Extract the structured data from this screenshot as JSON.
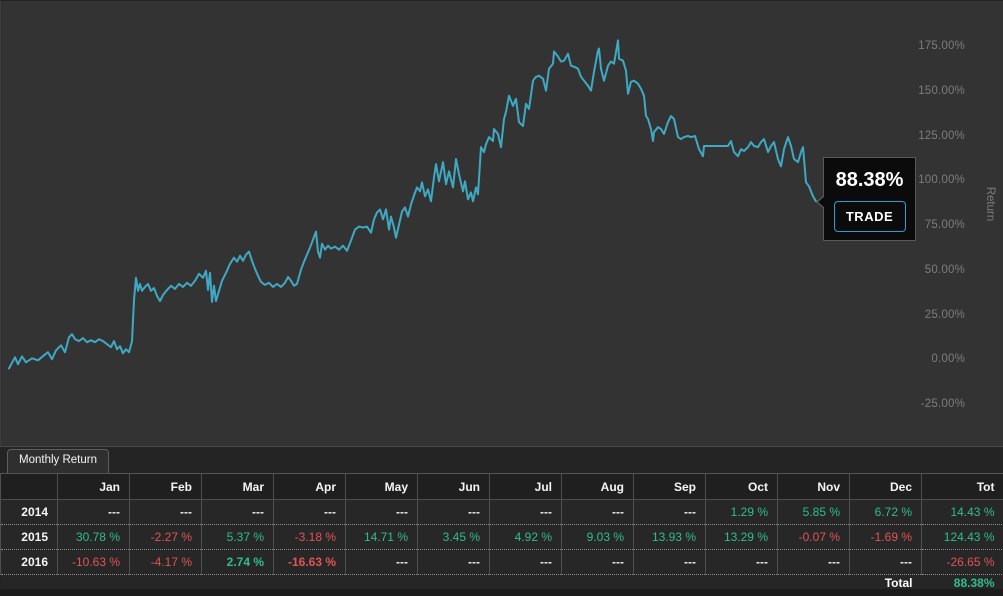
{
  "colors": {
    "positive": "#2EBE8D",
    "negative": "#E05454",
    "line": "#3FA9C4",
    "accent": "#2A9FD6"
  },
  "chart": {
    "tooltip": {
      "value": "88.38%",
      "button_label": "TRADE"
    },
    "axis": {
      "title": "Return",
      "ticks": [
        {
          "value": 175,
          "label": "175.00%"
        },
        {
          "value": 150,
          "label": "150.00%"
        },
        {
          "value": 125,
          "label": "125.00%"
        },
        {
          "value": 100,
          "label": "100.00%"
        },
        {
          "value": 75,
          "label": "75.00%"
        },
        {
          "value": 50,
          "label": "50.00%"
        },
        {
          "value": 25,
          "label": "25.00%"
        },
        {
          "value": 0,
          "label": "0.00%"
        },
        {
          "value": -25,
          "label": "-25.00%"
        }
      ]
    }
  },
  "chart_data": {
    "type": "line",
    "title": "",
    "xlabel": "",
    "ylabel": "Return",
    "ylim": [
      -25,
      175
    ],
    "grid": false,
    "legend": false,
    "x_description": "time (Oct 2014 - Apr 2016), no x tick labels shown; x stored as plot pixel offset",
    "point_format": "[x_px, return_pct]",
    "series": [
      {
        "name": "Return",
        "final_value_pct": 88.38,
        "points": [
          [
            8,
            -4.5
          ],
          [
            14,
            1.7
          ],
          [
            17,
            -2.2
          ],
          [
            21,
            2.2
          ],
          [
            25,
            -1.1
          ],
          [
            31,
            1.1
          ],
          [
            37,
            0
          ],
          [
            43,
            2.8
          ],
          [
            47,
            4.5
          ],
          [
            51,
            0.6
          ],
          [
            55,
            5.6
          ],
          [
            60,
            8.4
          ],
          [
            64,
            4.5
          ],
          [
            68,
            12.9
          ],
          [
            71,
            14.6
          ],
          [
            74,
            11.8
          ],
          [
            78,
            10.7
          ],
          [
            82,
            12.4
          ],
          [
            86,
            10.1
          ],
          [
            90,
            11.2
          ],
          [
            94,
            10.1
          ],
          [
            98,
            11.8
          ],
          [
            102,
            10.7
          ],
          [
            106,
            9
          ],
          [
            110,
            7.3
          ],
          [
            113,
            10.7
          ],
          [
            116,
            6.2
          ],
          [
            119,
            7.9
          ],
          [
            122,
            3.9
          ],
          [
            125,
            6.2
          ],
          [
            128,
            4.5
          ],
          [
            131,
            10.7
          ],
          [
            133,
            33.7
          ],
          [
            135,
            46.1
          ],
          [
            137,
            38.8
          ],
          [
            139,
            42.7
          ],
          [
            141,
            38.8
          ],
          [
            144,
            41
          ],
          [
            147,
            42.7
          ],
          [
            150,
            38.8
          ],
          [
            153,
            40.4
          ],
          [
            156,
            36
          ],
          [
            159,
            33.1
          ],
          [
            162,
            36.5
          ],
          [
            166,
            39.3
          ],
          [
            170,
            41.6
          ],
          [
            174,
            39.9
          ],
          [
            178,
            42.7
          ],
          [
            182,
            41
          ],
          [
            186,
            43.3
          ],
          [
            190,
            41.6
          ],
          [
            194,
            44.4
          ],
          [
            198,
            48.3
          ],
          [
            202,
            46.1
          ],
          [
            205,
            50
          ],
          [
            207,
            39.3
          ],
          [
            209,
            48.9
          ],
          [
            211,
            32.6
          ],
          [
            213,
            41.6
          ],
          [
            215,
            33.1
          ],
          [
            218,
            38.8
          ],
          [
            221,
            44.4
          ],
          [
            225,
            48.9
          ],
          [
            229,
            53.9
          ],
          [
            233,
            57.3
          ],
          [
            236,
            55.1
          ],
          [
            239,
            58.4
          ],
          [
            242,
            55.6
          ],
          [
            245,
            59
          ],
          [
            248,
            60.7
          ],
          [
            251,
            55.6
          ],
          [
            254,
            51.1
          ],
          [
            257,
            47.2
          ],
          [
            260,
            43.8
          ],
          [
            264,
            42.1
          ],
          [
            268,
            43.3
          ],
          [
            272,
            41
          ],
          [
            276,
            42.7
          ],
          [
            280,
            41
          ],
          [
            284,
            43.3
          ],
          [
            287,
            46.6
          ],
          [
            290,
            44.4
          ],
          [
            293,
            41.6
          ],
          [
            296,
            42.7
          ],
          [
            300,
            50.6
          ],
          [
            303,
            55.1
          ],
          [
            306,
            59
          ],
          [
            309,
            62.9
          ],
          [
            312,
            67.4
          ],
          [
            315,
            71.9
          ],
          [
            317,
            60.7
          ],
          [
            319,
            57.3
          ],
          [
            321,
            65.2
          ],
          [
            324,
            61.8
          ],
          [
            327,
            64
          ],
          [
            330,
            62.4
          ],
          [
            334,
            63.5
          ],
          [
            338,
            61.8
          ],
          [
            342,
            64
          ],
          [
            346,
            61.2
          ],
          [
            350,
            66.9
          ],
          [
            354,
            73
          ],
          [
            358,
            74.7
          ],
          [
            362,
            74.2
          ],
          [
            366,
            74.7
          ],
          [
            370,
            71.3
          ],
          [
            373,
            78.7
          ],
          [
            376,
            82.6
          ],
          [
            379,
            84.3
          ],
          [
            382,
            78.7
          ],
          [
            385,
            84.3
          ],
          [
            388,
            73
          ],
          [
            390,
            80.3
          ],
          [
            393,
            74.2
          ],
          [
            395,
            68.5
          ],
          [
            398,
            75.8
          ],
          [
            401,
            83.1
          ],
          [
            404,
            85.4
          ],
          [
            407,
            80.3
          ],
          [
            410,
            87.1
          ],
          [
            413,
            92.1
          ],
          [
            416,
            96.6
          ],
          [
            419,
            94.4
          ],
          [
            421,
            99.4
          ],
          [
            424,
            91.6
          ],
          [
            427,
            95.5
          ],
          [
            430,
            88.8
          ],
          [
            433,
            102.2
          ],
          [
            435,
            109.6
          ],
          [
            438,
            100
          ],
          [
            442,
            110.7
          ],
          [
            445,
            98.3
          ],
          [
            448,
            105.6
          ],
          [
            452,
            96.6
          ],
          [
            455,
            112.4
          ],
          [
            458,
            103.9
          ],
          [
            462,
            94.4
          ],
          [
            464,
            100
          ],
          [
            467,
            89.9
          ],
          [
            470,
            93.8
          ],
          [
            472,
            88.8
          ],
          [
            475,
            96.6
          ],
          [
            477,
            92.7
          ],
          [
            480,
            119.1
          ],
          [
            483,
            116.3
          ],
          [
            485,
            120.8
          ],
          [
            488,
            124.7
          ],
          [
            492,
            122.5
          ],
          [
            493,
            129.2
          ],
          [
            497,
            126.4
          ],
          [
            500,
            119.1
          ],
          [
            503,
            134.8
          ],
          [
            505,
            138.8
          ],
          [
            508,
            147.8
          ],
          [
            512,
            142.1
          ],
          [
            515,
            146.1
          ],
          [
            518,
            133.1
          ],
          [
            522,
            130.9
          ],
          [
            525,
            143.3
          ],
          [
            528,
            140.4
          ],
          [
            532,
            156.2
          ],
          [
            535,
            158.4
          ],
          [
            538,
            159
          ],
          [
            542,
            157.3
          ],
          [
            545,
            150.6
          ],
          [
            548,
            162.9
          ],
          [
            552,
            165.7
          ],
          [
            553,
            172.5
          ],
          [
            557,
            169.7
          ],
          [
            560,
            166.9
          ],
          [
            563,
            167.4
          ],
          [
            567,
            171.3
          ],
          [
            570,
            164.6
          ],
          [
            573,
            164
          ],
          [
            577,
            162.9
          ],
          [
            580,
            158.4
          ],
          [
            583,
            156.2
          ],
          [
            587,
            153.4
          ],
          [
            590,
            150.6
          ],
          [
            593,
            161.2
          ],
          [
            597,
            173
          ],
          [
            598,
            174.2
          ],
          [
            600,
            162.9
          ],
          [
            603,
            156.2
          ],
          [
            607,
            164.6
          ],
          [
            610,
            166.9
          ],
          [
            613,
            165.7
          ],
          [
            617,
            178.7
          ],
          [
            618,
            168.5
          ],
          [
            622,
            167.4
          ],
          [
            625,
            161.8
          ],
          [
            627,
            148.9
          ],
          [
            630,
            155.6
          ],
          [
            633,
            156.2
          ],
          [
            637,
            154.5
          ],
          [
            640,
            151.7
          ],
          [
            643,
            147.8
          ],
          [
            645,
            136.5
          ],
          [
            647,
            134.8
          ],
          [
            650,
            129.2
          ],
          [
            652,
            122.5
          ],
          [
            653,
            127.5
          ],
          [
            657,
            130.3
          ],
          [
            660,
            129.2
          ],
          [
            663,
            126.4
          ],
          [
            667,
            133.1
          ],
          [
            670,
            136.5
          ],
          [
            673,
            134.8
          ],
          [
            677,
            124.7
          ],
          [
            680,
            123.6
          ],
          [
            683,
            124.7
          ],
          [
            687,
            125.3
          ],
          [
            690,
            124.7
          ],
          [
            694,
            125.3
          ],
          [
            698,
            118
          ],
          [
            702,
            114
          ],
          [
            703,
            119.7
          ],
          [
            707,
            119.7
          ],
          [
            713,
            119.7
          ],
          [
            720,
            119.7
          ],
          [
            727,
            119.7
          ],
          [
            730,
            122.5
          ],
          [
            733,
            116.3
          ],
          [
            737,
            114
          ],
          [
            740,
            118
          ],
          [
            743,
            116.9
          ],
          [
            747,
            119.1
          ],
          [
            750,
            121.9
          ],
          [
            753,
            119.7
          ],
          [
            757,
            119.1
          ],
          [
            760,
            121.9
          ],
          [
            763,
            123.6
          ],
          [
            767,
            116.3
          ],
          [
            770,
            119.7
          ],
          [
            773,
            121.9
          ],
          [
            777,
            112.4
          ],
          [
            780,
            108.4
          ],
          [
            783,
            118
          ],
          [
            787,
            124.7
          ],
          [
            790,
            119.7
          ],
          [
            793,
            112.4
          ],
          [
            797,
            110.7
          ],
          [
            800,
            116.3
          ],
          [
            802,
            119.1
          ],
          [
            805,
            99.4
          ],
          [
            808,
            97.2
          ],
          [
            812,
            91.6
          ],
          [
            815,
            88.8
          ],
          [
            818,
            88.38
          ]
        ]
      }
    ]
  },
  "tabs": {
    "monthly_return": "Monthly Return"
  },
  "table": {
    "corner": "",
    "columns": [
      "Jan",
      "Feb",
      "Mar",
      "Apr",
      "May",
      "Jun",
      "Jul",
      "Aug",
      "Sep",
      "Oct",
      "Nov",
      "Dec",
      "Tot"
    ],
    "rows": [
      {
        "year": "2014",
        "values": [
          "---",
          "---",
          "---",
          "---",
          "---",
          "---",
          "---",
          "---",
          "---",
          "1.29 %",
          "5.85 %",
          "6.72 %",
          "14.43 %"
        ]
      },
      {
        "year": "2015",
        "values": [
          "30.78 %",
          "-2.27 %",
          "5.37 %",
          "-3.18 %",
          "14.71 %",
          "3.45 %",
          "4.92 %",
          "9.03 %",
          "13.93 %",
          "13.29 %",
          "-0.07 %",
          "-1.69 %",
          "124.43 %"
        ]
      },
      {
        "year": "2016",
        "values": [
          "-10.63 %",
          "-4.17 %",
          "2.74 %",
          "-16.63 %",
          "---",
          "---",
          "---",
          "---",
          "---",
          "---",
          "---",
          "---",
          "-26.65 %"
        ]
      }
    ],
    "bold_cells": [
      [
        2,
        2
      ],
      [
        2,
        3
      ]
    ],
    "total_label": "Total",
    "total_value": "88.38%"
  }
}
